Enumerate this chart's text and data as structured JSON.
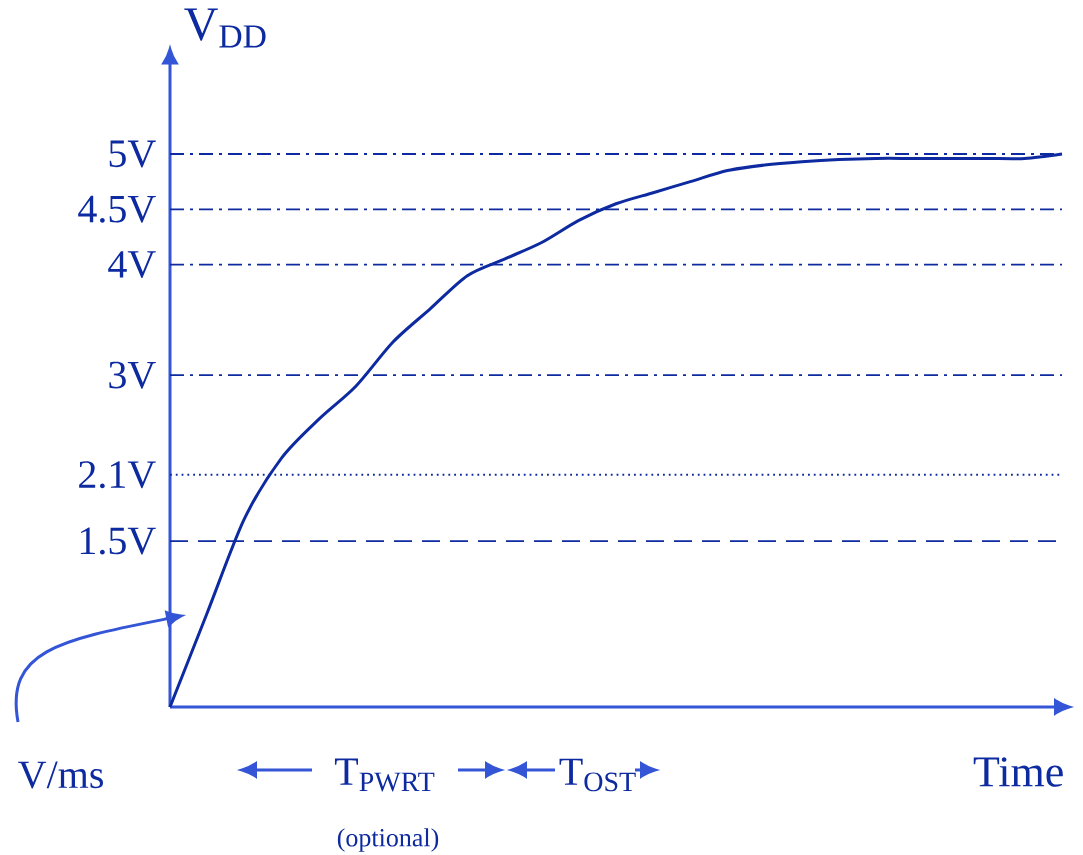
{
  "chart_data": {
    "type": "line",
    "ylabel": "V$_{DD}$",
    "xlabel": "Time",
    "categories": [
      null,
      null,
      null,
      null,
      null,
      null,
      null,
      null,
      null,
      null,
      null,
      null,
      null,
      null,
      null,
      null,
      null,
      null,
      null,
      null,
      null,
      null,
      null,
      null,
      null
    ],
    "values": [
      0,
      0.85,
      1.7,
      2.25,
      2.6,
      2.9,
      3.3,
      3.6,
      3.9,
      4.05,
      4.2,
      4.4,
      4.55,
      4.65,
      4.75,
      4.85,
      4.9,
      4.93,
      4.95,
      4.96,
      4.96,
      4.96,
      4.96,
      4.96,
      5
    ],
    "color": "#0d2aa0",
    "ylim": [
      0,
      5.9
    ],
    "yticks": [
      {
        "value": 1.5,
        "label": "1.5V"
      },
      {
        "value": 2.1,
        "label": "2.1V"
      },
      {
        "value": 3,
        "label": "3V"
      },
      {
        "value": 4,
        "label": "4V"
      },
      {
        "value": 4.5,
        "label": "4.5V"
      },
      {
        "value": 5,
        "label": "5V"
      }
    ],
    "tick_labels": "y",
    "ref_lines": [
      {
        "axis": "y",
        "value": 5,
        "line_style": "dashdot"
      },
      {
        "axis": "y",
        "value": 4.5,
        "line_style": "dashdot"
      },
      {
        "axis": "y",
        "value": 4,
        "line_style": "dashdot"
      },
      {
        "axis": "y",
        "value": 3,
        "line_style": "dashdot"
      },
      {
        "axis": "y",
        "value": 2.1,
        "line_style": "dotted"
      },
      {
        "axis": "y",
        "value": 1.5,
        "line_style": "dashed"
      }
    ],
    "annotations": [
      "T$_{PWRT}$",
      "(optional)",
      "T$_{OST}$",
      "V/ms"
    ],
    "grid": false,
    "marker": "none",
    "line_style": "solid"
  }
}
